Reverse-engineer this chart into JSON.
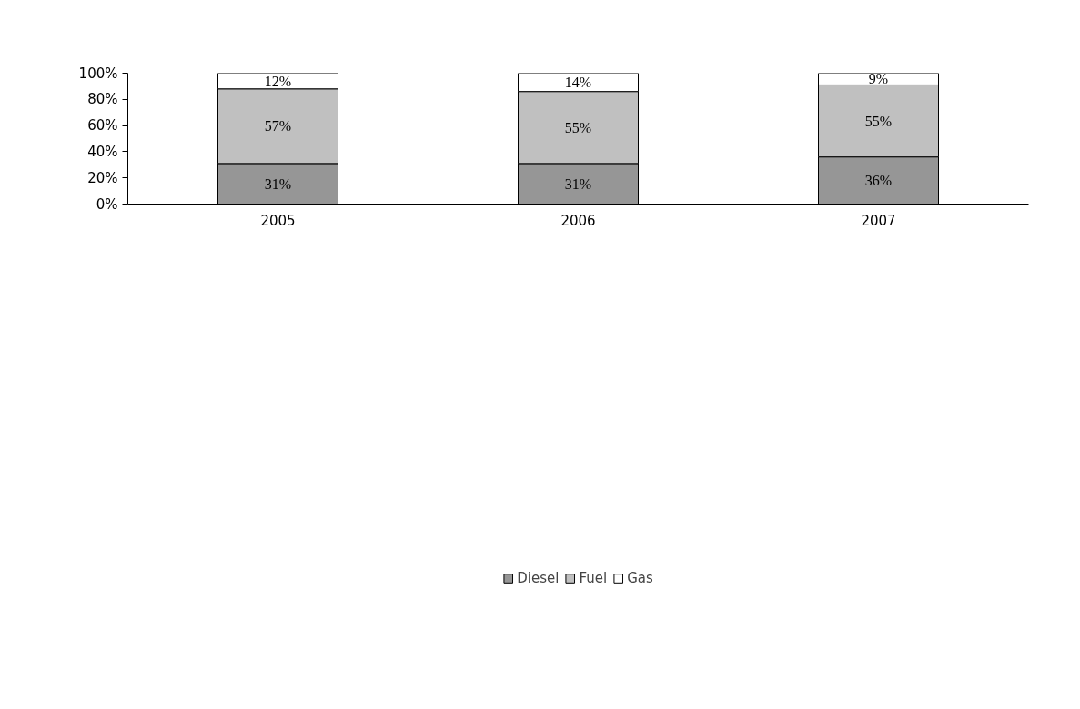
{
  "chart_data": {
    "type": "bar",
    "stacked": true,
    "categories": [
      "2005",
      "2006",
      "2007"
    ],
    "series": [
      {
        "name": "Diesel",
        "color": "#969696",
        "values": [
          31,
          31,
          36
        ],
        "value_labels": [
          "31%",
          "31%",
          "36%"
        ]
      },
      {
        "name": "Fuel",
        "color": "#c0c0c0",
        "values": [
          57,
          55,
          55
        ],
        "value_labels": [
          "57%",
          "55%",
          "55%"
        ]
      },
      {
        "name": "Gas",
        "color": "#ffffff",
        "values": [
          12,
          14,
          9
        ],
        "value_labels": [
          "12%",
          "14%",
          "9%"
        ]
      }
    ],
    "ylim": [
      0,
      100
    ],
    "yticks": [
      {
        "value": 0,
        "label": "0%"
      },
      {
        "value": 20,
        "label": "20%"
      },
      {
        "value": 40,
        "label": "40%"
      },
      {
        "value": 60,
        "label": "60%"
      },
      {
        "value": 80,
        "label": "80%"
      },
      {
        "value": 100,
        "label": "100%"
      }
    ],
    "legend": "bottom"
  }
}
